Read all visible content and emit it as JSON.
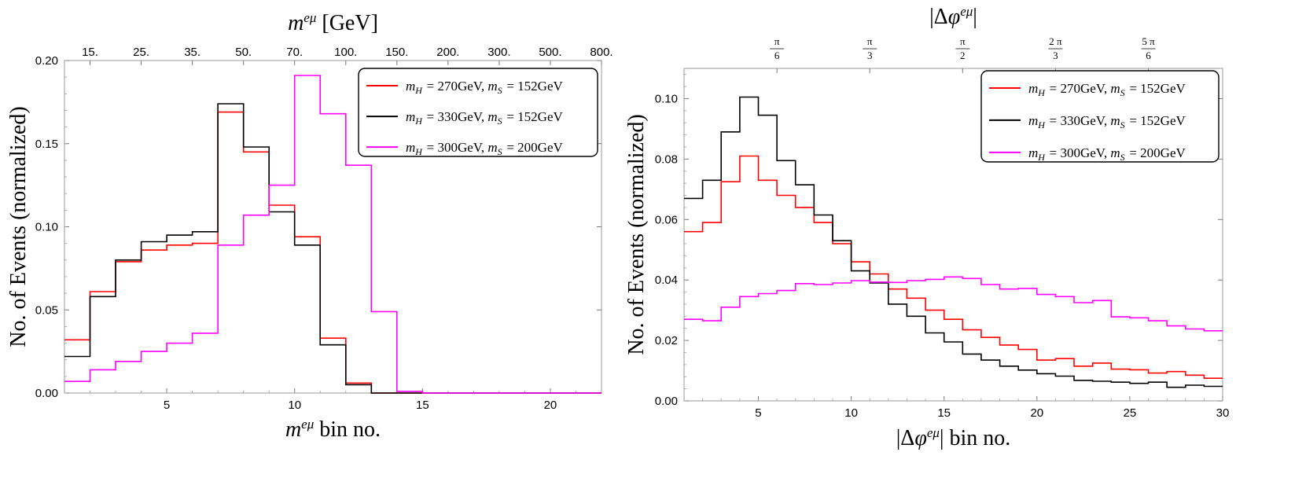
{
  "chart_data": [
    {
      "type": "histogram-step",
      "xlabel": "m^{eμ} bin no.",
      "xlabel_var": "m",
      "xlabel_sup": "eμ",
      "xlabel_rest": " bin no.",
      "ylabel": "No. of Events (normalized)",
      "top_label": "m^{eμ} [GeV]",
      "top_label_var": "m",
      "top_label_sup": "eμ",
      "top_label_rest": " [GeV]",
      "xlim": [
        1,
        22
      ],
      "ylim": [
        0,
        0.2
      ],
      "xticks": [
        5,
        10,
        15,
        20
      ],
      "yticks": [
        0.0,
        0.05,
        0.1,
        0.15,
        0.2
      ],
      "ytick_labels": [
        "0.00",
        "0.05",
        "0.10",
        "0.15",
        "0.20"
      ],
      "top_ticks": [
        {
          "x": 2,
          "label": "15."
        },
        {
          "x": 4,
          "label": "25."
        },
        {
          "x": 6,
          "label": "35."
        },
        {
          "x": 8,
          "label": "50."
        },
        {
          "x": 10,
          "label": "70."
        },
        {
          "x": 12,
          "label": "100."
        },
        {
          "x": 14,
          "label": "150."
        },
        {
          "x": 16,
          "label": "200."
        },
        {
          "x": 18,
          "label": "300."
        },
        {
          "x": 20,
          "label": "500."
        },
        {
          "x": 22,
          "label": "800."
        }
      ],
      "legend_position": "top-right",
      "series": [
        {
          "name": "m_H = 270GeV, m_S = 152GeV",
          "color": "#ff0000",
          "values": [
            0.032,
            0.061,
            0.079,
            0.086,
            0.089,
            0.09,
            0.169,
            0.145,
            0.113,
            0.094,
            0.033,
            0.006,
            0,
            0,
            0,
            0,
            0,
            0,
            0,
            0,
            0
          ]
        },
        {
          "name": "m_H = 330GeV, m_S = 152GeV",
          "color": "#000000",
          "values": [
            0.022,
            0.058,
            0.08,
            0.091,
            0.095,
            0.097,
            0.174,
            0.148,
            0.109,
            0.089,
            0.029,
            0.005,
            0,
            0,
            0,
            0,
            0,
            0,
            0,
            0,
            0
          ]
        },
        {
          "name": "m_H = 300GeV, m_S = 200GeV",
          "color": "#ff00ff",
          "values": [
            0.007,
            0.014,
            0.019,
            0.025,
            0.03,
            0.036,
            0.089,
            0.107,
            0.125,
            0.191,
            0.168,
            0.137,
            0.049,
            0.001,
            0,
            0,
            0,
            0,
            0,
            0,
            0
          ]
        }
      ]
    },
    {
      "type": "histogram-step",
      "xlabel": "|Δφ^{eμ}| bin no.",
      "xlabel_pre": "|Δ",
      "xlabel_var": "φ",
      "xlabel_sup": "eμ",
      "xlabel_rest": "| bin no.",
      "ylabel": "No. of Events (normalized)",
      "top_label": "|Δφ^{eμ}|",
      "top_label_pre": "|Δ",
      "top_label_var": "φ",
      "top_label_sup": "eμ",
      "top_label_rest": "|",
      "xlim": [
        1,
        30
      ],
      "ylim": [
        0,
        0.11
      ],
      "xticks": [
        5,
        10,
        15,
        20,
        25,
        30
      ],
      "yticks": [
        0.0,
        0.02,
        0.04,
        0.06,
        0.08,
        0.1
      ],
      "ytick_labels": [
        "0.00",
        "0.02",
        "0.04",
        "0.06",
        "0.08",
        "0.10"
      ],
      "top_ticks": [
        {
          "x": 6,
          "num": "π",
          "den": "6"
        },
        {
          "x": 11,
          "num": "π",
          "den": "3"
        },
        {
          "x": 16,
          "num": "π",
          "den": "2"
        },
        {
          "x": 21,
          "num": "2 π",
          "den": "3"
        },
        {
          "x": 26,
          "num": "5 π",
          "den": "6"
        }
      ],
      "legend_position": "top-right",
      "series": [
        {
          "name": "m_H = 270GeV, m_S = 152GeV",
          "color": "#ff0000",
          "values": [
            0.056,
            0.059,
            0.0725,
            0.081,
            0.073,
            0.068,
            0.064,
            0.059,
            0.052,
            0.046,
            0.042,
            0.037,
            0.034,
            0.03,
            0.027,
            0.0235,
            0.021,
            0.0185,
            0.017,
            0.0135,
            0.014,
            0.0115,
            0.0125,
            0.0105,
            0.0103,
            0.0092,
            0.0097,
            0.0085,
            0.0075
          ]
        },
        {
          "name": "m_H = 330GeV, m_S = 152GeV",
          "color": "#000000",
          "values": [
            0.067,
            0.073,
            0.089,
            0.1005,
            0.0945,
            0.0795,
            0.0715,
            0.0615,
            0.053,
            0.043,
            0.039,
            0.032,
            0.028,
            0.0225,
            0.0195,
            0.0155,
            0.0135,
            0.0115,
            0.0102,
            0.009,
            0.0082,
            0.0068,
            0.0065,
            0.0062,
            0.0058,
            0.0062,
            0.0045,
            0.0052,
            0.0048
          ]
        },
        {
          "name": "m_H = 300GeV, m_S = 200GeV",
          "color": "#ff00ff",
          "values": [
            0.027,
            0.0265,
            0.031,
            0.0345,
            0.0355,
            0.0365,
            0.0388,
            0.0385,
            0.039,
            0.0398,
            0.0393,
            0.0392,
            0.0398,
            0.0402,
            0.041,
            0.0405,
            0.0385,
            0.037,
            0.0372,
            0.0352,
            0.0345,
            0.0325,
            0.0332,
            0.0278,
            0.0275,
            0.0265,
            0.0248,
            0.0238,
            0.0232
          ]
        }
      ]
    }
  ]
}
